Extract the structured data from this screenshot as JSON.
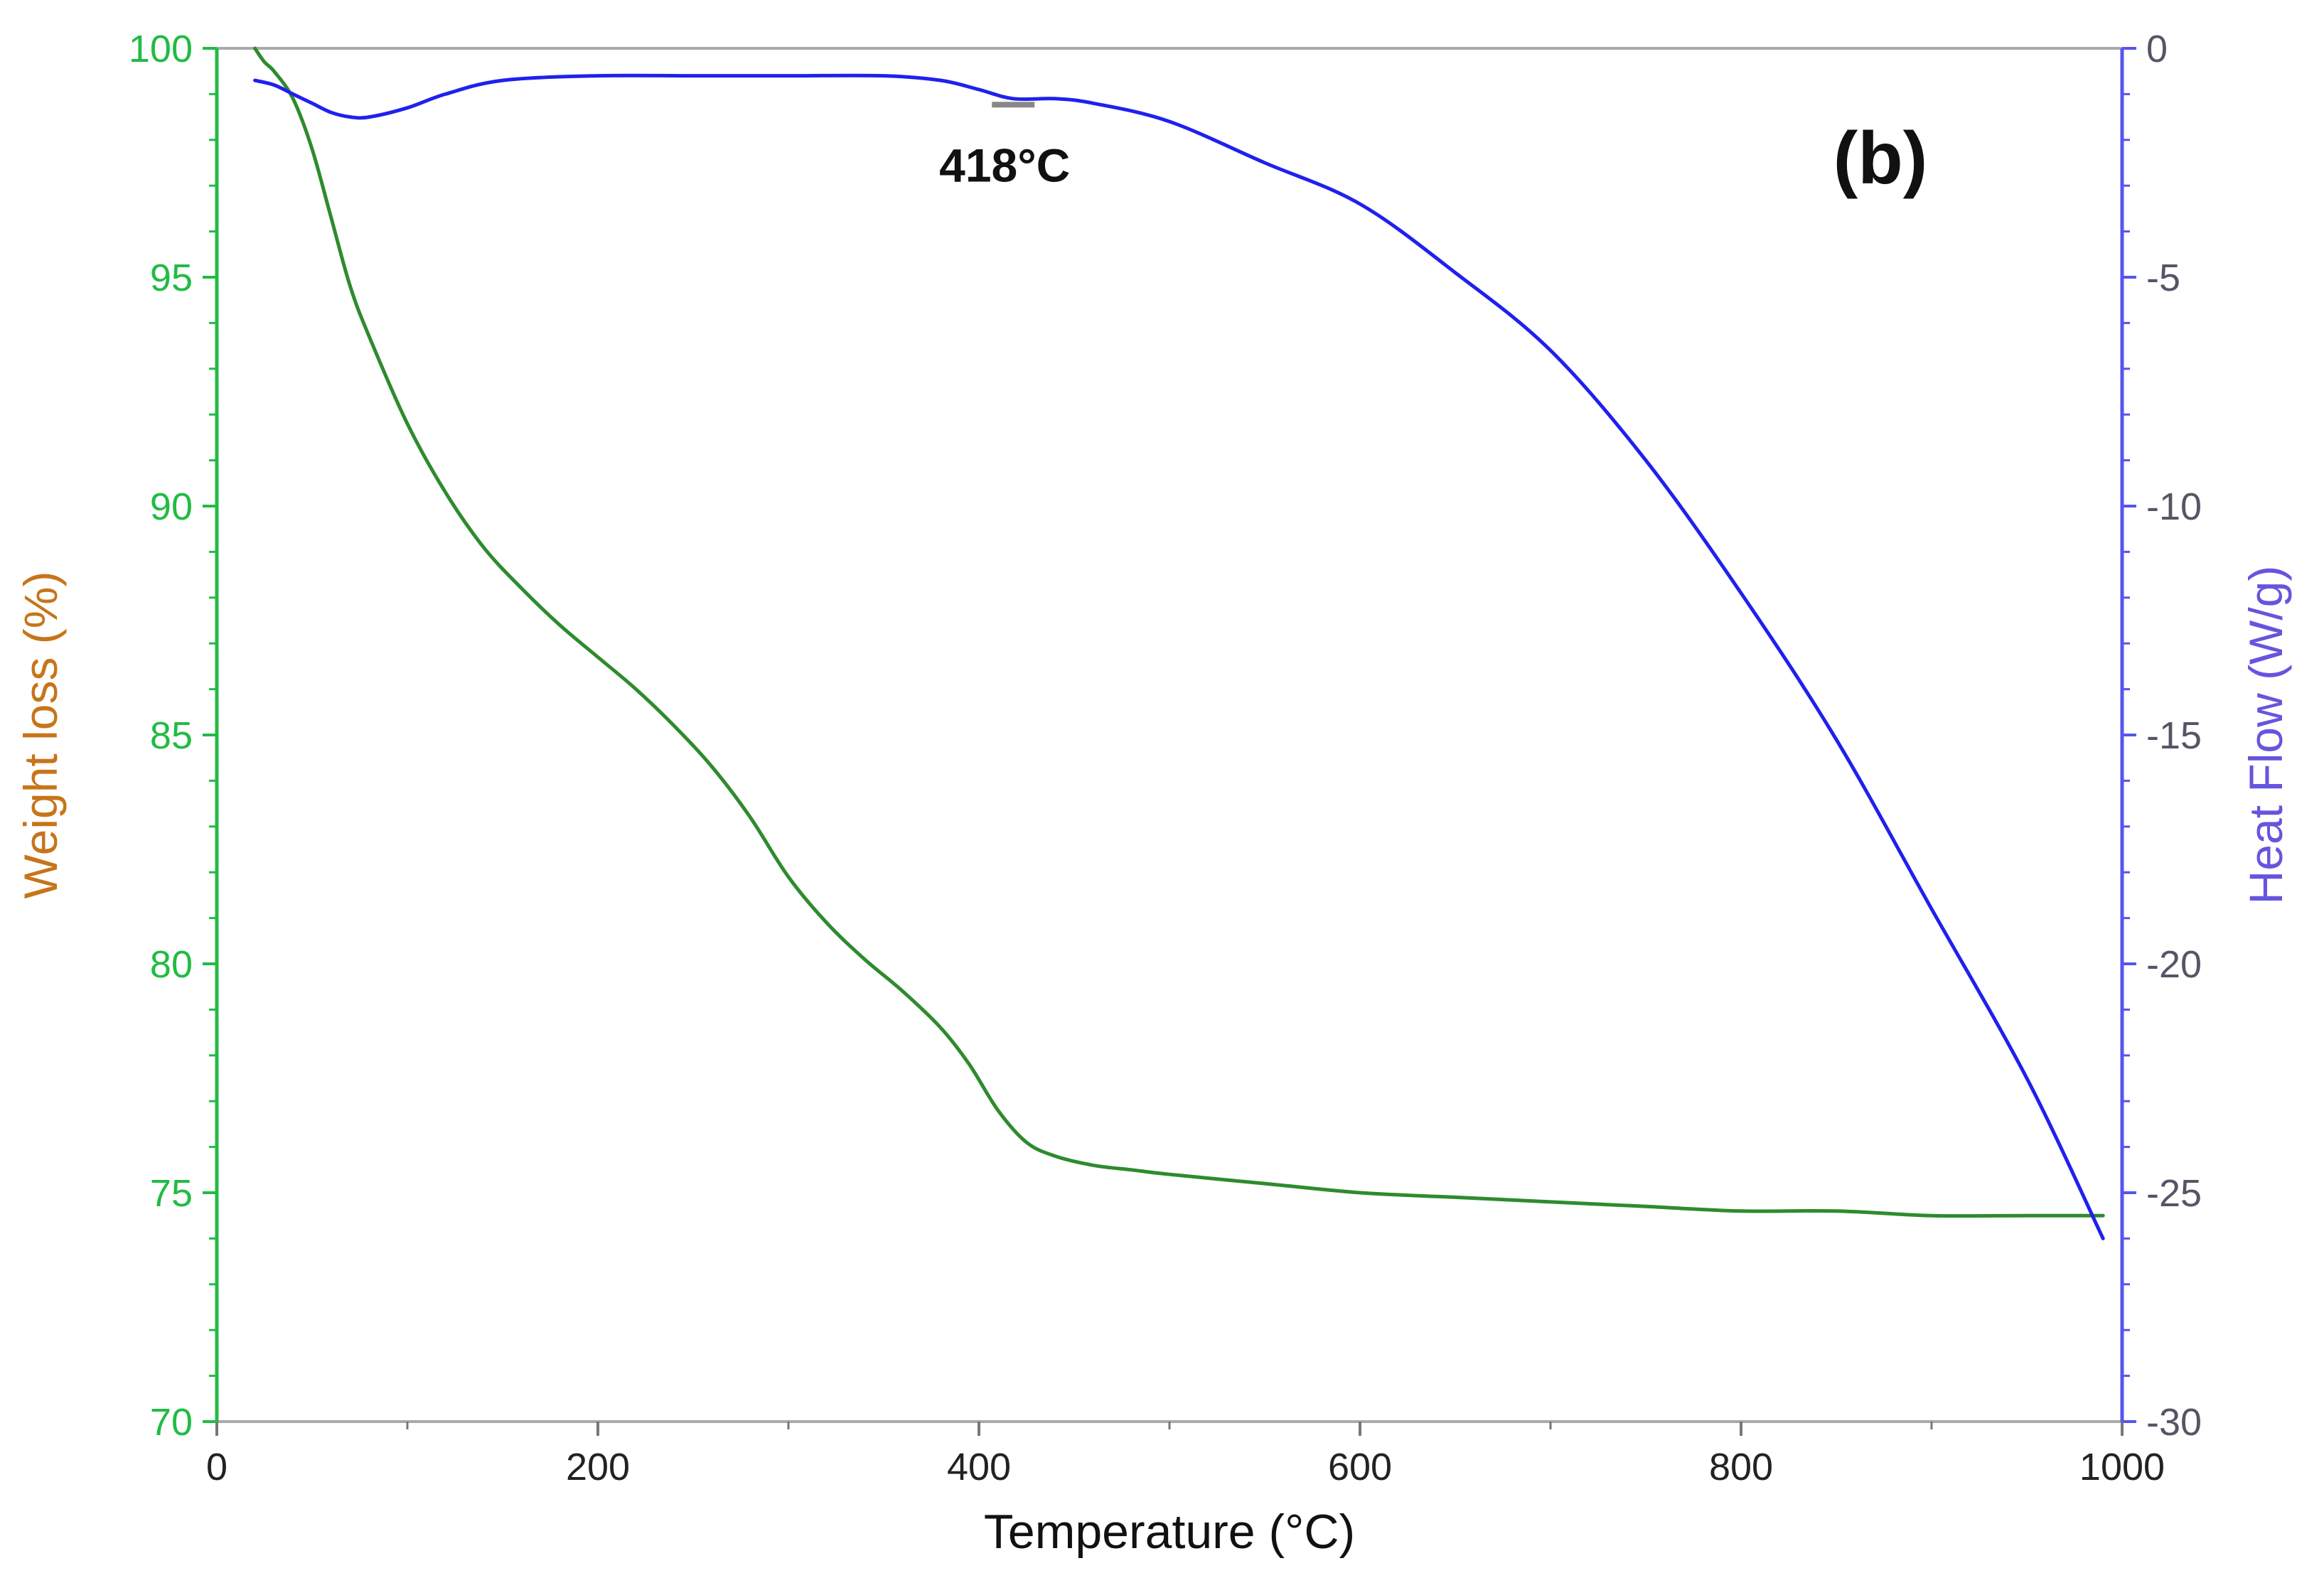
{
  "chart_data": {
    "type": "line",
    "panel_label": "(b)",
    "xlabel": "Temperature  (°C)",
    "ylabel_left": "Weight loss (%)",
    "ylabel_right": "Heat Flow (W/g)",
    "xlim": [
      0,
      1000
    ],
    "ylim_left": [
      70,
      100
    ],
    "ylim_right": [
      -30,
      0
    ],
    "x_ticks": [
      0,
      200,
      400,
      600,
      800,
      1000
    ],
    "x_tick_labels": [
      "0",
      "200",
      "400",
      "600",
      "800",
      "1000"
    ],
    "y_left_ticks": [
      70,
      75,
      80,
      85,
      90,
      95,
      100
    ],
    "y_left_tick_labels": [
      "70",
      "75",
      "80",
      "85",
      "90",
      "95",
      "100"
    ],
    "y_right_ticks": [
      -30,
      -25,
      -20,
      -15,
      -10,
      -5,
      0
    ],
    "y_right_tick_labels": [
      "-30",
      "-25",
      "-20",
      "-15",
      "-10",
      "-5",
      "0"
    ],
    "grid": false,
    "legend": "none",
    "annotation": {
      "text": "418°C",
      "x": 418,
      "y": -1.2
    },
    "colors": {
      "weight": "#2e8b2e",
      "heat": "#2020ee",
      "left_axis": "#22bb44",
      "right_axis": "#5555ee",
      "left_label": "#c8741a",
      "right_label": "#6655dd",
      "text": "#111111"
    },
    "series": [
      {
        "axis": "left",
        "x": [
          20,
          25,
          30,
          40,
          50,
          60,
          70,
          80,
          100,
          120,
          140,
          160,
          180,
          200,
          220,
          240,
          260,
          280,
          300,
          320,
          340,
          360,
          380,
          395,
          410,
          425,
          440,
          460,
          480,
          500,
          550,
          600,
          650,
          700,
          750,
          800,
          850,
          900,
          950,
          990
        ],
        "values": [
          100,
          99.7,
          99.5,
          98.9,
          97.8,
          96.3,
          94.8,
          93.7,
          91.8,
          90.3,
          89.1,
          88.2,
          87.4,
          86.7,
          86.0,
          85.2,
          84.3,
          83.2,
          81.9,
          80.9,
          80.1,
          79.4,
          78.6,
          77.8,
          76.8,
          76.1,
          75.8,
          75.6,
          75.5,
          75.4,
          75.2,
          75.0,
          74.9,
          74.8,
          74.7,
          74.6,
          74.6,
          74.5,
          74.5,
          74.5
        ]
      },
      {
        "axis": "right",
        "x": [
          20,
          30,
          40,
          50,
          60,
          70,
          80,
          100,
          120,
          150,
          200,
          250,
          300,
          350,
          380,
          400,
          418,
          440,
          460,
          500,
          550,
          600,
          650,
          700,
          750,
          800,
          850,
          900,
          950,
          990
        ],
        "values": [
          -0.7,
          -0.8,
          -1.0,
          -1.2,
          -1.4,
          -1.5,
          -1.5,
          -1.3,
          -1.0,
          -0.7,
          -0.6,
          -0.6,
          -0.6,
          -0.6,
          -0.7,
          -0.9,
          -1.1,
          -1.1,
          -1.2,
          -1.6,
          -2.5,
          -3.4,
          -4.9,
          -6.6,
          -9.0,
          -11.9,
          -15.1,
          -18.8,
          -22.5,
          -26.0
        ]
      }
    ]
  }
}
